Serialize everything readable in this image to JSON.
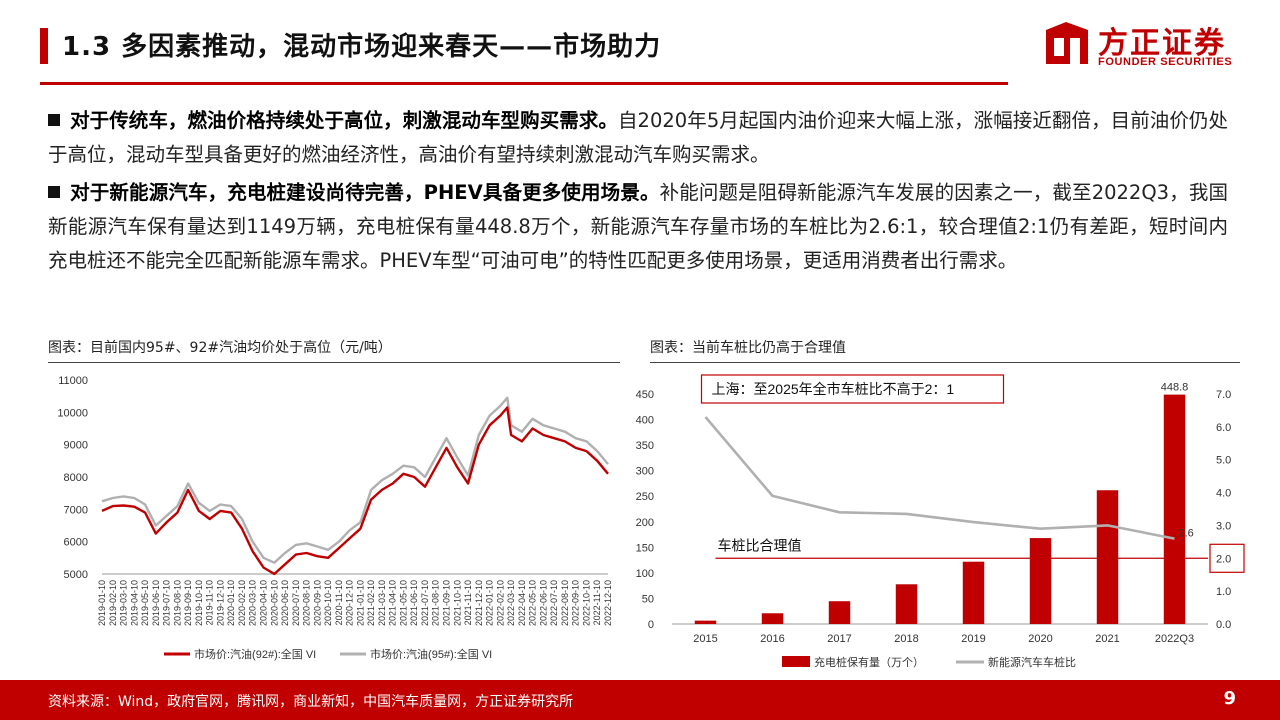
{
  "header": {
    "title": "1.3 多因素推动，混动市场迎来春天——市场助力",
    "logo_cn": "方正证券",
    "logo_en": "FOUNDER SECURITIES",
    "brand_color": "#c00000"
  },
  "bullets": [
    {
      "bold": "对于传统车，燃油价格持续处于高位，刺激混动车型购买需求。",
      "text": "自2020年5月起国内油价迎来大幅上涨，涨幅接近翻倍，目前油价仍处于高位，混动车型具备更好的燃油经济性，高油价有望持续刺激混动汽车购买需求。"
    },
    {
      "bold": "对于新能源汽车，充电桩建设尚待完善，PHEV具备更多使用场景。",
      "text": "补能问题是阻碍新能源汽车发展的因素之一，截至2022Q3，我国新能源汽车保有量达到1149万辆，充电桩保有量448.8万个，新能源汽车存量市场的车桩比为2.6:1，较合理值2:1仍有差距，短时间内充电桩还不能完全匹配新能源车需求。PHEV车型“可油可电”的特性匹配更多使用场景，更适用消费者出行需求。"
    }
  ],
  "left_chart": {
    "caption": "图表：目前国内95#、92#汽油均价处于高位（元/吨）"
  },
  "right_chart": {
    "caption": "图表：当前车桩比仍高于合理值",
    "annotation": "上海：至2025年全市车桩比不高于2：1",
    "ref_line_label": "车桩比合理值"
  },
  "footer": {
    "source": "资料来源：Wind，政府官网，腾讯网，商业新知，中国汽车质量网，方正证券研究所",
    "page": "9"
  },
  "chart_data": [
    {
      "type": "line",
      "title": "",
      "xlabel": "",
      "ylabel": "",
      "ylim": [
        5000,
        11000
      ],
      "yticks": [
        5000,
        6000,
        7000,
        8000,
        9000,
        10000,
        11000
      ],
      "grid": false,
      "legend_position": "bottom",
      "x": [
        "2019-01-10",
        "2019-02-10",
        "2019-03-10",
        "2019-04-10",
        "2019-05-10",
        "2019-06-10",
        "2019-07-10",
        "2019-08-10",
        "2019-09-10",
        "2019-10-10",
        "2019-11-10",
        "2019-12-10",
        "2020-01-10",
        "2020-02-10",
        "2020-03-10",
        "2020-04-10",
        "2020-05-10",
        "2020-06-10",
        "2020-07-10",
        "2020-08-10",
        "2020-09-10",
        "2020-10-10",
        "2020-11-10",
        "2020-12-10",
        "2021-01-10",
        "2021-02-10",
        "2021-03-10",
        "2021-04-10",
        "2021-05-10",
        "2021-06-10",
        "2021-07-10",
        "2021-08-10",
        "2021-09-10",
        "2021-10-10",
        "2021-11-10",
        "2021-12-10",
        "2022-01-10",
        "2022-02-10",
        "2022-03-10",
        "2022-04-10",
        "2022-05-10",
        "2022-06-10",
        "2022-07-10",
        "2022-08-10",
        "2022-09-10",
        "2022-10-10",
        "2022-11-10",
        "2022-12-10"
      ],
      "series": [
        {
          "name": "市场价:汽油(92#):全国 VI",
          "color": "#c00000",
          "values": [
            6950,
            7100,
            7120,
            7080,
            6900,
            6250,
            6600,
            6900,
            7600,
            6950,
            6700,
            6950,
            6900,
            6400,
            5700,
            5200,
            5000,
            5300,
            5600,
            5650,
            5550,
            5500,
            5800,
            6100,
            6400,
            7300,
            7600,
            7800,
            8100,
            8000,
            7700,
            8300,
            8900,
            8300,
            7800,
            9000,
            9600,
            9900,
            9300,
            9100,
            9500,
            9300,
            9200,
            9100,
            8900,
            8800,
            8500,
            8100
          ],
          "peaks": [
            {
              "index": 38,
              "value": 10150
            }
          ]
        },
        {
          "name": "市场价:汽油(95#):全国 VI",
          "color": "#b0b0b0",
          "values": [
            7250,
            7350,
            7400,
            7350,
            7150,
            6500,
            6800,
            7100,
            7800,
            7200,
            6950,
            7150,
            7100,
            6700,
            6000,
            5500,
            5350,
            5650,
            5900,
            5950,
            5850,
            5750,
            6000,
            6350,
            6600,
            7600,
            7900,
            8100,
            8350,
            8300,
            8000,
            8600,
            9200,
            8600,
            8050,
            9300,
            9900,
            10200,
            9600,
            9400,
            9800,
            9600,
            9500,
            9400,
            9200,
            9100,
            8800,
            8400
          ],
          "peaks": [
            {
              "index": 38,
              "value": 10450
            }
          ]
        }
      ]
    },
    {
      "type": "bar",
      "title": "",
      "categories": [
        "2015",
        "2016",
        "2017",
        "2018",
        "2019",
        "2020",
        "2021",
        "2022Q3"
      ],
      "ylim": [
        0,
        450
      ],
      "yticks": [
        0,
        50,
        100,
        150,
        200,
        250,
        300,
        350,
        400,
        450
      ],
      "y2lim": [
        0,
        7.0
      ],
      "y2ticks": [
        "0.0",
        "1.0",
        "2.0",
        "3.0",
        "4.0",
        "5.0",
        "6.0",
        "7.0"
      ],
      "grid": false,
      "legend_position": "bottom",
      "series": [
        {
          "name": "充电桩保有量（万个）",
          "type": "bar",
          "axis": "left",
          "color": "#c00000",
          "values": [
            6.6,
            21.0,
            44.6,
            77.7,
            121.9,
            168.1,
            261.7,
            448.8
          ]
        },
        {
          "name": "新能源汽车车桩比",
          "type": "line",
          "axis": "right",
          "color": "#b0b0b0",
          "values": [
            6.3,
            3.9,
            3.4,
            3.35,
            3.1,
            2.9,
            3.0,
            2.6
          ]
        }
      ],
      "bar_data_labels": [
        {
          "index": 7,
          "text": "448.8"
        }
      ],
      "line_data_labels": [
        {
          "index": 7,
          "text": "2.6"
        }
      ],
      "reference_line": {
        "value": 2.0,
        "axis": "right"
      }
    }
  ]
}
